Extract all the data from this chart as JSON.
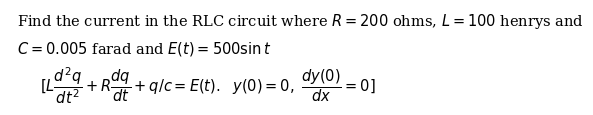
{
  "line1": "Find the current in the RLC circuit where $R = 200$ ohms, $L = 100$ henrys and",
  "line2": "$C = 0.005$ farad and $E(t) = 500\\sin t$",
  "line3": "$[L\\dfrac{d^2q}{dt^2} + R\\dfrac{dq}{dt} + q/c = E(t).\\ \\ y(0) = 0,\\ \\dfrac{dy(0)}{dx} = 0]$",
  "text_color": "#000000",
  "background_color": "#ffffff",
  "fontsize": 10.5
}
